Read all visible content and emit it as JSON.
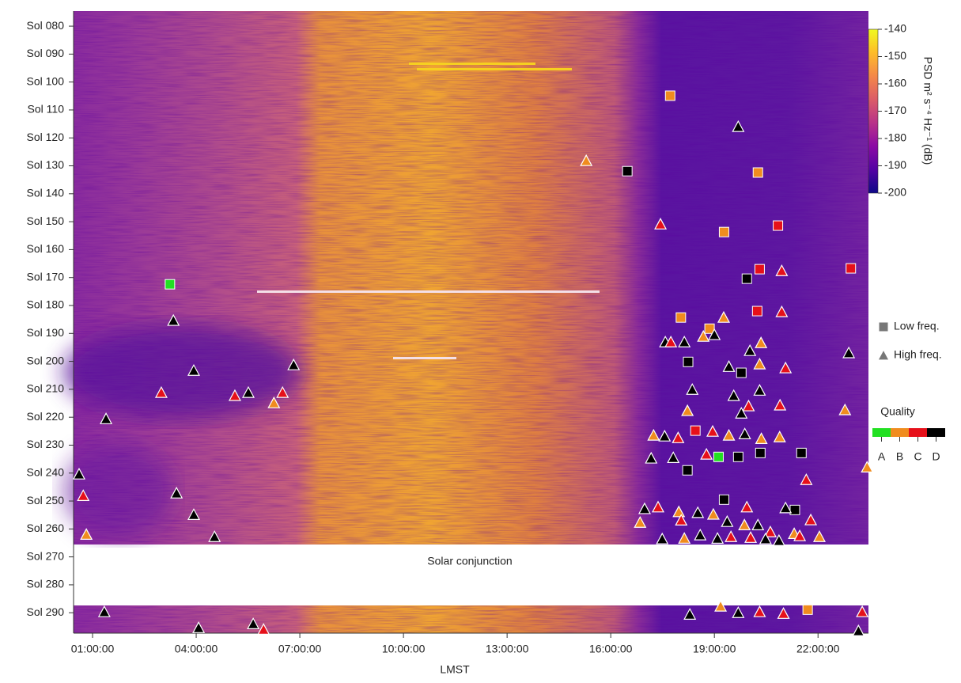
{
  "chart_data": {
    "type": "scatter",
    "x_label": "LMST",
    "annotation": "Solar conjunction",
    "xlim": [
      0.45,
      23.46
    ],
    "xticks": [
      {
        "value": 1,
        "label": "01:00:00"
      },
      {
        "value": 4,
        "label": "04:00:00"
      },
      {
        "value": 7,
        "label": "07:00:00"
      },
      {
        "value": 10,
        "label": "10:00:00"
      },
      {
        "value": 13,
        "label": "13:00:00"
      },
      {
        "value": 16,
        "label": "16:00:00"
      },
      {
        "value": 19,
        "label": "19:00:00"
      },
      {
        "value": 22,
        "label": "22:00:00"
      }
    ],
    "ylim": [
      297.3,
      74.6
    ],
    "yticks": [
      {
        "value": 80,
        "label": "Sol 080"
      },
      {
        "value": 90,
        "label": "Sol 090"
      },
      {
        "value": 100,
        "label": "Sol 100"
      },
      {
        "value": 110,
        "label": "Sol 110"
      },
      {
        "value": 120,
        "label": "Sol 120"
      },
      {
        "value": 130,
        "label": "Sol 130"
      },
      {
        "value": 140,
        "label": "Sol 140"
      },
      {
        "value": 150,
        "label": "Sol 150"
      },
      {
        "value": 160,
        "label": "Sol 160"
      },
      {
        "value": 170,
        "label": "Sol 170"
      },
      {
        "value": 180,
        "label": "Sol 180"
      },
      {
        "value": 190,
        "label": "Sol 190"
      },
      {
        "value": 200,
        "label": "Sol 200"
      },
      {
        "value": 210,
        "label": "Sol 210"
      },
      {
        "value": 220,
        "label": "Sol 220"
      },
      {
        "value": 230,
        "label": "Sol 230"
      },
      {
        "value": 240,
        "label": "Sol 240"
      },
      {
        "value": 250,
        "label": "Sol 250"
      },
      {
        "value": 260,
        "label": "Sol 260"
      },
      {
        "value": 270,
        "label": "Sol 270"
      },
      {
        "value": 280,
        "label": "Sol 280"
      },
      {
        "value": 290,
        "label": "Sol 290"
      }
    ],
    "colorbar": {
      "label": "PSD m² s⁻⁴ Hz⁻¹ (dB)",
      "colormap": "plasma",
      "lim": [
        -200,
        -140
      ],
      "ticks": [
        -140,
        -150,
        -160,
        -170,
        -180,
        -190,
        -200
      ]
    },
    "quality_title": "Quality",
    "quality_levels": [
      "A",
      "B",
      "C",
      "D"
    ],
    "quality_colors": {
      "A": "#22e022",
      "B": "#f08c1e",
      "C": "#e6101a",
      "D": "#000000"
    },
    "series": [
      {
        "name": "Low freq.",
        "marker": "square",
        "x": [
          17.72,
          16.48,
          20.26,
          19.28,
          20.84,
          20.31,
          22.95,
          19.94,
          3.24,
          18.03,
          18.86,
          20.24,
          18.24,
          19.78,
          18.45,
          19.12,
          19.69,
          20.33,
          21.52,
          18.22,
          19.28,
          21.33,
          21.7
        ],
        "y": [
          104.9,
          131.9,
          132.4,
          153.7,
          151.4,
          167.0,
          166.7,
          170.4,
          172.4,
          184.3,
          188.3,
          182.0,
          200.2,
          204.1,
          224.8,
          234.2,
          234.2,
          232.8,
          232.8,
          239.0,
          249.5,
          253.2,
          288.9
        ],
        "quality": [
          "B",
          "D",
          "B",
          "B",
          "C",
          "C",
          "C",
          "D",
          "A",
          "B",
          "B",
          "C",
          "D",
          "D",
          "C",
          "A",
          "D",
          "D",
          "D",
          "D",
          "D",
          "D",
          "B"
        ]
      },
      {
        "name": "High freq.",
        "marker": "triangle",
        "x": [
          19.69,
          15.29,
          17.44,
          20.95,
          3.34,
          19.27,
          20.95,
          3.93,
          6.82,
          2.99,
          5.12,
          5.51,
          6.5,
          6.25,
          1.39,
          22.89,
          22.78,
          0.61,
          0.73,
          3.43,
          3.93,
          0.82,
          4.53,
          17.58,
          17.74,
          18.13,
          18.68,
          19.0,
          20.03,
          20.35,
          20.31,
          19.42,
          21.06,
          18.36,
          20.31,
          19.56,
          18.22,
          19.99,
          19.78,
          20.9,
          17.24,
          17.56,
          17.95,
          18.95,
          19.42,
          19.88,
          20.36,
          20.89,
          17.17,
          17.81,
          18.77,
          21.66,
          23.42,
          16.98,
          17.37,
          17.97,
          18.52,
          18.97,
          19.94,
          21.06,
          21.79,
          16.85,
          18.04,
          19.37,
          20.26,
          19.87,
          20.62,
          21.31,
          17.49,
          18.13,
          18.59,
          19.09,
          19.48,
          20.05,
          20.48,
          20.87,
          21.47,
          22.04,
          1.34,
          5.65,
          5.95,
          4.07,
          18.29,
          19.18,
          19.69,
          20.31,
          21.0,
          23.28,
          23.17
        ],
        "y": [
          116.0,
          128.2,
          150.9,
          167.6,
          185.4,
          184.3,
          182.3,
          203.3,
          201.3,
          211.2,
          212.3,
          211.2,
          211.2,
          214.9,
          220.6,
          197.0,
          217.4,
          240.4,
          248.1,
          247.2,
          254.9,
          262.0,
          262.8,
          193.1,
          193.1,
          193.1,
          191.1,
          190.5,
          196.2,
          193.4,
          201.0,
          201.9,
          202.4,
          210.1,
          210.4,
          212.3,
          217.7,
          216.0,
          218.6,
          215.7,
          226.5,
          226.8,
          227.4,
          225.1,
          226.5,
          226.0,
          227.7,
          227.1,
          234.7,
          234.5,
          233.3,
          242.4,
          237.9,
          252.8,
          252.2,
          253.9,
          254.2,
          254.8,
          252.2,
          252.5,
          256.8,
          257.7,
          256.9,
          257.4,
          258.6,
          258.6,
          261.1,
          261.7,
          263.6,
          263.4,
          262.2,
          263.4,
          262.8,
          263.1,
          263.6,
          264.2,
          262.5,
          262.8,
          289.7,
          294.0,
          296.0,
          295.4,
          290.6,
          287.7,
          290.0,
          289.7,
          290.3,
          289.7,
          296.5
        ],
        "quality": [
          "D",
          "B",
          "C",
          "C",
          "D",
          "B",
          "C",
          "D",
          "D",
          "C",
          "C",
          "D",
          "C",
          "B",
          "D",
          "D",
          "B",
          "D",
          "C",
          "D",
          "D",
          "B",
          "D",
          "D",
          "C",
          "D",
          "B",
          "D",
          "D",
          "B",
          "B",
          "D",
          "C",
          "D",
          "D",
          "D",
          "B",
          "C",
          "D",
          "C",
          "B",
          "D",
          "C",
          "C",
          "B",
          "D",
          "B",
          "B",
          "D",
          "D",
          "C",
          "C",
          "B",
          "D",
          "C",
          "B",
          "D",
          "B",
          "C",
          "D",
          "C",
          "B",
          "C",
          "D",
          "D",
          "B",
          "C",
          "B",
          "D",
          "B",
          "D",
          "D",
          "C",
          "C",
          "D",
          "D",
          "C",
          "B",
          "D",
          "D",
          "C",
          "D",
          "D",
          "B",
          "D",
          "C",
          "C",
          "C",
          "D"
        ]
      }
    ]
  }
}
